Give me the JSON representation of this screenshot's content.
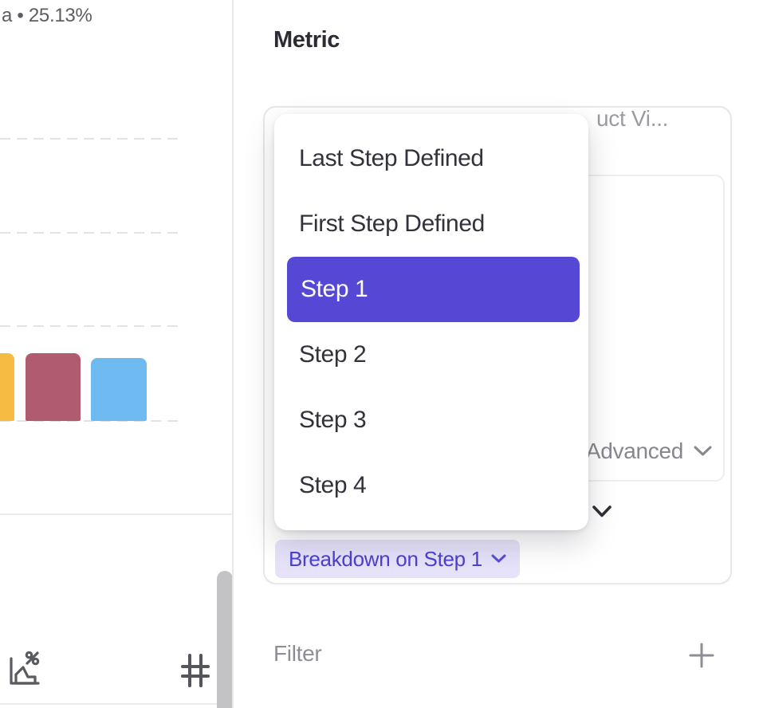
{
  "left_panel": {
    "series_label": "a • 25.13%",
    "bars": [
      {
        "name": "funnel-bar-1",
        "color": "#F6BB43"
      },
      {
        "name": "funnel-bar-2",
        "color": "#B05B6E"
      },
      {
        "name": "funnel-bar-3",
        "color": "#6FBBF1"
      }
    ],
    "toolbar_icons": [
      {
        "name": "conversion-chart-percent-icon"
      },
      {
        "name": "hash-number-icon"
      }
    ]
  },
  "panel": {
    "title": "Metric",
    "card": {
      "truncated_event_label": "uct Vi...",
      "advanced_label": "Advanced",
      "breakdown_chip_label": "Breakdown on Step 1",
      "collapsed_chevron_icon": "chevron-down-icon"
    },
    "dropdown": {
      "items": [
        {
          "label": "Last Step Defined",
          "selected": false
        },
        {
          "label": "First Step Defined",
          "selected": false
        },
        {
          "label": "Step 1",
          "selected": true
        },
        {
          "label": "Step 2",
          "selected": false
        },
        {
          "label": "Step 3",
          "selected": false
        },
        {
          "label": "Step 4",
          "selected": false
        }
      ]
    },
    "filter": {
      "label": "Filter",
      "add_icon": "plus-icon"
    }
  },
  "colors": {
    "accent": "#5448D4",
    "chip_bg": "#E5E2FA",
    "chip_text": "#4C40D1",
    "gridline": "#E3E3E6",
    "scrollbar": "#C3C3C6",
    "icon_gray": "#5A5A61",
    "muted_text": "#8E8E96"
  }
}
